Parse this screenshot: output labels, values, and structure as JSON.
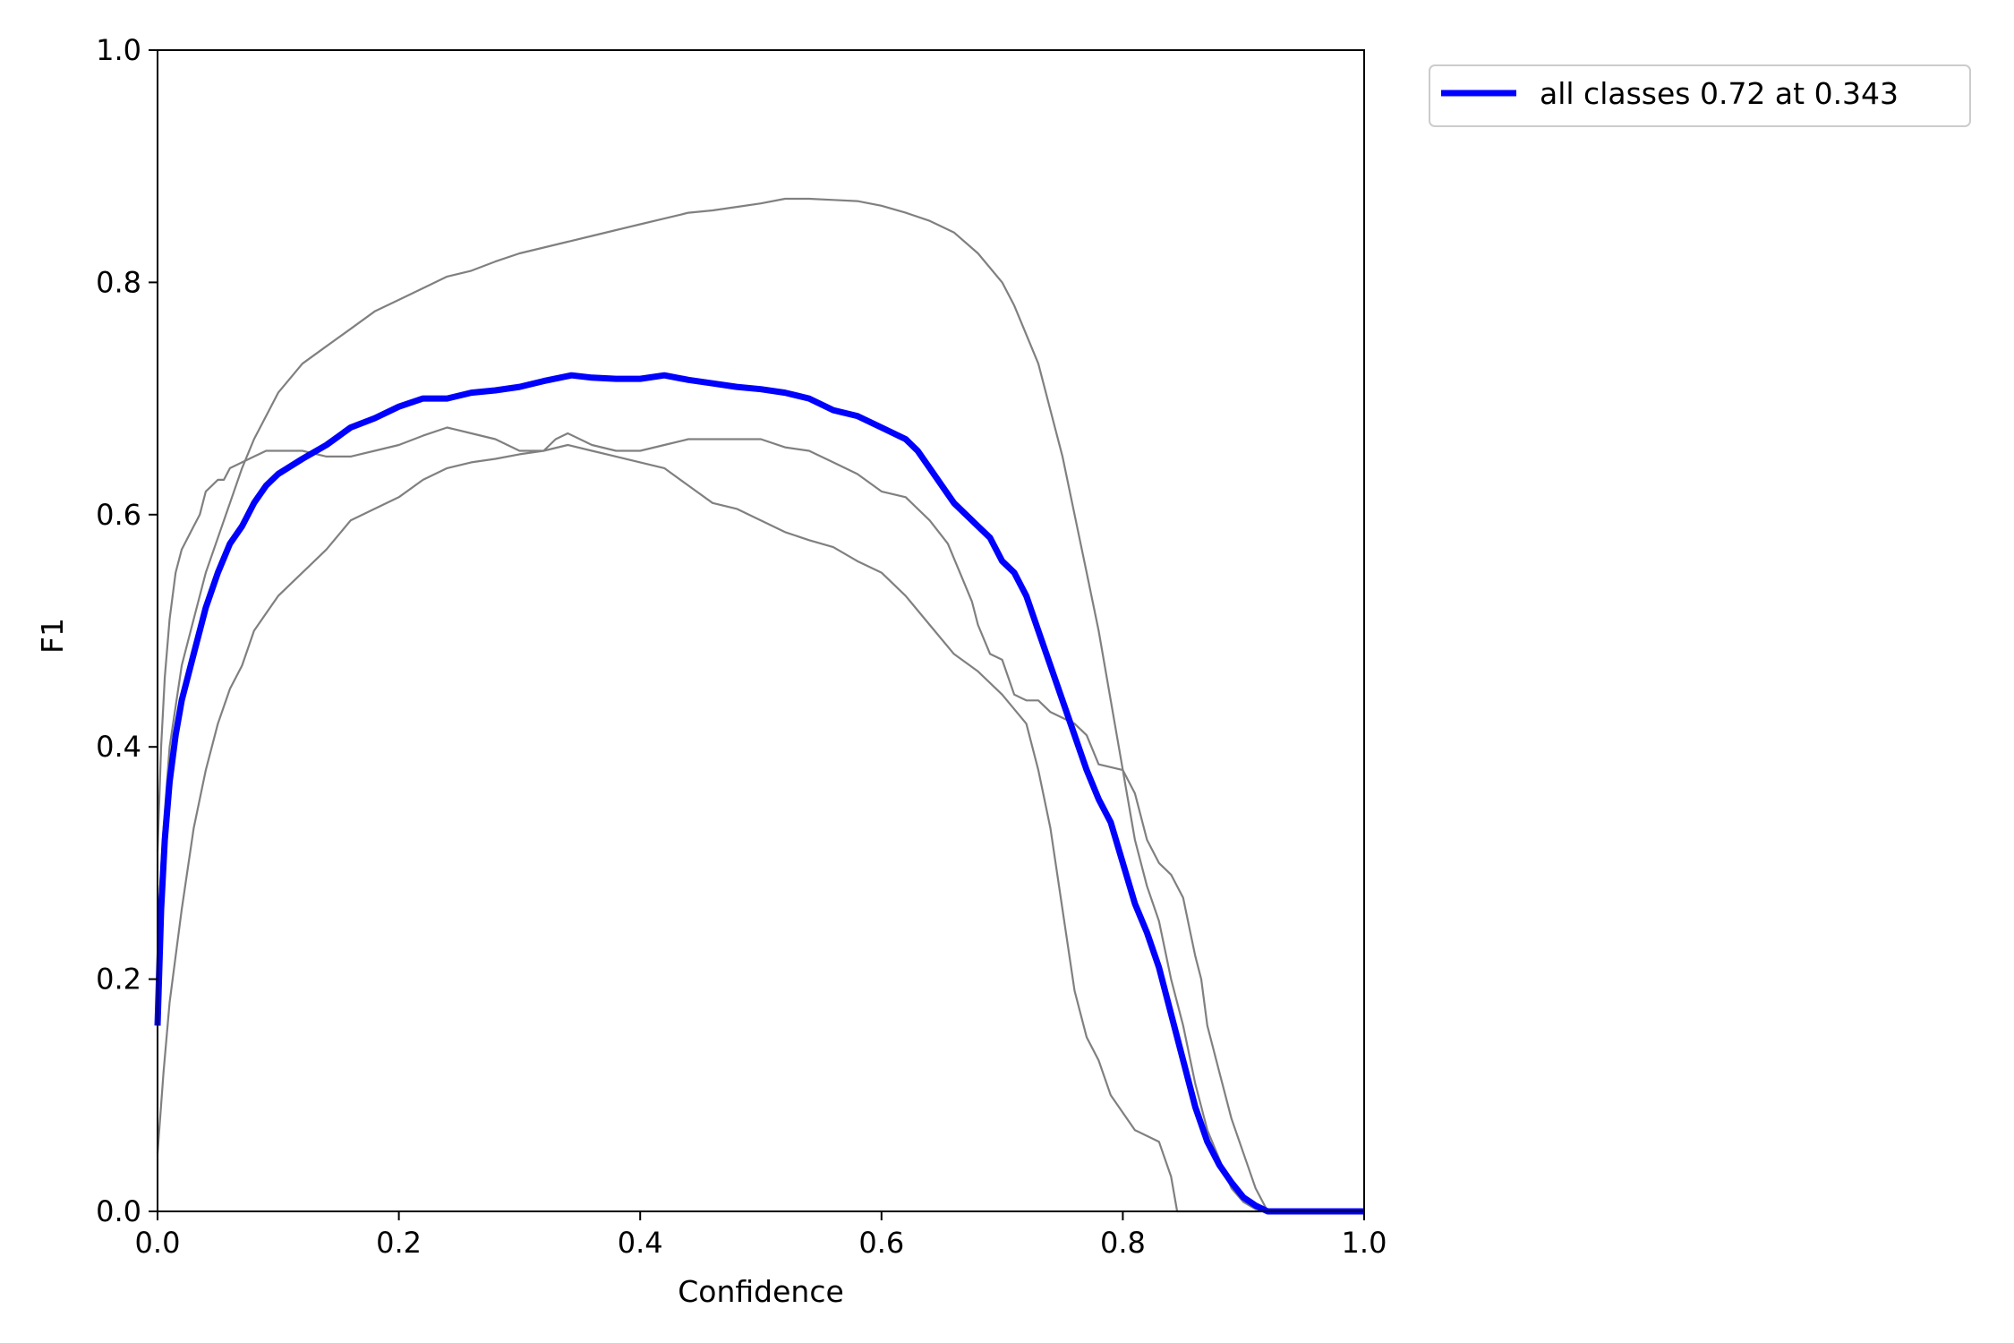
{
  "chart_data": {
    "type": "line",
    "title": "",
    "xlabel": "Confidence",
    "ylabel": "F1",
    "xlim": [
      0,
      1
    ],
    "ylim": [
      0,
      1
    ],
    "xticks": [
      "0.0",
      "0.2",
      "0.4",
      "0.6",
      "0.8",
      "1.0"
    ],
    "yticks": [
      "0.0",
      "0.2",
      "0.4",
      "0.6",
      "0.8",
      "1.0"
    ],
    "grid": false,
    "legend_position": "outside-top-right",
    "series": [
      {
        "name": "",
        "color": "#808080",
        "points": [
          [
            0.0,
            0.31
          ],
          [
            0.003,
            0.4
          ],
          [
            0.006,
            0.46
          ],
          [
            0.01,
            0.51
          ],
          [
            0.015,
            0.55
          ],
          [
            0.02,
            0.57
          ],
          [
            0.025,
            0.58
          ],
          [
            0.03,
            0.59
          ],
          [
            0.035,
            0.6
          ],
          [
            0.04,
            0.62
          ],
          [
            0.045,
            0.625
          ],
          [
            0.05,
            0.63
          ],
          [
            0.055,
            0.63
          ],
          [
            0.06,
            0.64
          ],
          [
            0.07,
            0.645
          ],
          [
            0.08,
            0.65
          ],
          [
            0.09,
            0.655
          ],
          [
            0.1,
            0.655
          ],
          [
            0.12,
            0.655
          ],
          [
            0.14,
            0.65
          ],
          [
            0.16,
            0.65
          ],
          [
            0.18,
            0.655
          ],
          [
            0.2,
            0.66
          ],
          [
            0.22,
            0.668
          ],
          [
            0.24,
            0.675
          ],
          [
            0.26,
            0.67
          ],
          [
            0.28,
            0.665
          ],
          [
            0.3,
            0.655
          ],
          [
            0.32,
            0.655
          ],
          [
            0.33,
            0.665
          ],
          [
            0.34,
            0.67
          ],
          [
            0.36,
            0.66
          ],
          [
            0.38,
            0.655
          ],
          [
            0.4,
            0.655
          ],
          [
            0.42,
            0.66
          ],
          [
            0.44,
            0.665
          ],
          [
            0.46,
            0.665
          ],
          [
            0.48,
            0.665
          ],
          [
            0.5,
            0.665
          ],
          [
            0.52,
            0.658
          ],
          [
            0.54,
            0.655
          ],
          [
            0.56,
            0.645
          ],
          [
            0.58,
            0.635
          ],
          [
            0.6,
            0.62
          ],
          [
            0.62,
            0.615
          ],
          [
            0.64,
            0.595
          ],
          [
            0.655,
            0.575
          ],
          [
            0.665,
            0.55
          ],
          [
            0.675,
            0.525
          ],
          [
            0.68,
            0.505
          ],
          [
            0.69,
            0.48
          ],
          [
            0.7,
            0.475
          ],
          [
            0.71,
            0.445
          ],
          [
            0.72,
            0.44
          ],
          [
            0.73,
            0.44
          ],
          [
            0.74,
            0.43
          ],
          [
            0.75,
            0.425
          ],
          [
            0.76,
            0.42
          ],
          [
            0.77,
            0.41
          ],
          [
            0.78,
            0.385
          ],
          [
            0.8,
            0.38
          ],
          [
            0.81,
            0.36
          ],
          [
            0.82,
            0.32
          ],
          [
            0.83,
            0.3
          ],
          [
            0.84,
            0.29
          ],
          [
            0.85,
            0.27
          ],
          [
            0.855,
            0.245
          ],
          [
            0.86,
            0.22
          ],
          [
            0.865,
            0.2
          ],
          [
            0.87,
            0.16
          ],
          [
            0.88,
            0.12
          ],
          [
            0.89,
            0.08
          ],
          [
            0.9,
            0.05
          ],
          [
            0.91,
            0.02
          ],
          [
            0.92,
            0.0
          ],
          [
            1.0,
            0.0
          ]
        ]
      },
      {
        "name": "",
        "color": "#808080",
        "points": [
          [
            0.0,
            0.05
          ],
          [
            0.005,
            0.12
          ],
          [
            0.01,
            0.18
          ],
          [
            0.02,
            0.26
          ],
          [
            0.03,
            0.33
          ],
          [
            0.04,
            0.38
          ],
          [
            0.05,
            0.42
          ],
          [
            0.06,
            0.45
          ],
          [
            0.07,
            0.47
          ],
          [
            0.08,
            0.5
          ],
          [
            0.09,
            0.515
          ],
          [
            0.1,
            0.53
          ],
          [
            0.12,
            0.55
          ],
          [
            0.14,
            0.57
          ],
          [
            0.16,
            0.595
          ],
          [
            0.18,
            0.605
          ],
          [
            0.2,
            0.615
          ],
          [
            0.22,
            0.63
          ],
          [
            0.24,
            0.64
          ],
          [
            0.26,
            0.645
          ],
          [
            0.28,
            0.648
          ],
          [
            0.3,
            0.652
          ],
          [
            0.32,
            0.655
          ],
          [
            0.34,
            0.66
          ],
          [
            0.36,
            0.655
          ],
          [
            0.38,
            0.65
          ],
          [
            0.4,
            0.645
          ],
          [
            0.42,
            0.64
          ],
          [
            0.44,
            0.625
          ],
          [
            0.46,
            0.61
          ],
          [
            0.48,
            0.605
          ],
          [
            0.5,
            0.595
          ],
          [
            0.52,
            0.585
          ],
          [
            0.54,
            0.578
          ],
          [
            0.56,
            0.572
          ],
          [
            0.58,
            0.56
          ],
          [
            0.6,
            0.55
          ],
          [
            0.62,
            0.53
          ],
          [
            0.64,
            0.505
          ],
          [
            0.66,
            0.48
          ],
          [
            0.68,
            0.465
          ],
          [
            0.7,
            0.445
          ],
          [
            0.72,
            0.42
          ],
          [
            0.73,
            0.38
          ],
          [
            0.74,
            0.33
          ],
          [
            0.75,
            0.26
          ],
          [
            0.76,
            0.19
          ],
          [
            0.77,
            0.15
          ],
          [
            0.78,
            0.13
          ],
          [
            0.79,
            0.1
          ],
          [
            0.8,
            0.085
          ],
          [
            0.81,
            0.07
          ],
          [
            0.82,
            0.065
          ],
          [
            0.83,
            0.06
          ],
          [
            0.84,
            0.03
          ],
          [
            0.845,
            0.0
          ],
          [
            1.0,
            0.0
          ]
        ]
      },
      {
        "name": "",
        "color": "#808080",
        "points": [
          [
            0.0,
            0.24
          ],
          [
            0.005,
            0.33
          ],
          [
            0.01,
            0.4
          ],
          [
            0.02,
            0.47
          ],
          [
            0.03,
            0.51
          ],
          [
            0.04,
            0.55
          ],
          [
            0.05,
            0.58
          ],
          [
            0.06,
            0.61
          ],
          [
            0.07,
            0.64
          ],
          [
            0.08,
            0.665
          ],
          [
            0.09,
            0.685
          ],
          [
            0.1,
            0.705
          ],
          [
            0.12,
            0.73
          ],
          [
            0.14,
            0.745
          ],
          [
            0.16,
            0.76
          ],
          [
            0.18,
            0.775
          ],
          [
            0.2,
            0.785
          ],
          [
            0.22,
            0.795
          ],
          [
            0.24,
            0.805
          ],
          [
            0.26,
            0.81
          ],
          [
            0.28,
            0.818
          ],
          [
            0.3,
            0.825
          ],
          [
            0.32,
            0.83
          ],
          [
            0.34,
            0.835
          ],
          [
            0.36,
            0.84
          ],
          [
            0.38,
            0.845
          ],
          [
            0.4,
            0.85
          ],
          [
            0.42,
            0.855
          ],
          [
            0.44,
            0.86
          ],
          [
            0.46,
            0.862
          ],
          [
            0.48,
            0.865
          ],
          [
            0.5,
            0.868
          ],
          [
            0.52,
            0.872
          ],
          [
            0.54,
            0.872
          ],
          [
            0.56,
            0.871
          ],
          [
            0.58,
            0.87
          ],
          [
            0.6,
            0.866
          ],
          [
            0.62,
            0.86
          ],
          [
            0.64,
            0.853
          ],
          [
            0.66,
            0.843
          ],
          [
            0.68,
            0.825
          ],
          [
            0.7,
            0.8
          ],
          [
            0.71,
            0.78
          ],
          [
            0.72,
            0.755
          ],
          [
            0.73,
            0.73
          ],
          [
            0.74,
            0.69
          ],
          [
            0.75,
            0.65
          ],
          [
            0.76,
            0.6
          ],
          [
            0.77,
            0.55
          ],
          [
            0.78,
            0.5
          ],
          [
            0.79,
            0.44
          ],
          [
            0.8,
            0.38
          ],
          [
            0.81,
            0.32
          ],
          [
            0.82,
            0.28
          ],
          [
            0.83,
            0.25
          ],
          [
            0.84,
            0.2
          ],
          [
            0.85,
            0.16
          ],
          [
            0.86,
            0.11
          ],
          [
            0.87,
            0.07
          ],
          [
            0.88,
            0.045
          ],
          [
            0.89,
            0.02
          ],
          [
            0.9,
            0.008
          ],
          [
            0.91,
            0.002
          ],
          [
            0.92,
            0.0
          ],
          [
            1.0,
            0.0
          ]
        ]
      },
      {
        "name": "all classes 0.72 at 0.343",
        "color": "#0000ff",
        "points": [
          [
            0.0,
            0.16
          ],
          [
            0.003,
            0.26
          ],
          [
            0.006,
            0.32
          ],
          [
            0.01,
            0.37
          ],
          [
            0.015,
            0.41
          ],
          [
            0.02,
            0.44
          ],
          [
            0.03,
            0.48
          ],
          [
            0.04,
            0.52
          ],
          [
            0.05,
            0.55
          ],
          [
            0.06,
            0.575
          ],
          [
            0.07,
            0.59
          ],
          [
            0.08,
            0.61
          ],
          [
            0.09,
            0.625
          ],
          [
            0.1,
            0.635
          ],
          [
            0.12,
            0.648
          ],
          [
            0.14,
            0.66
          ],
          [
            0.16,
            0.675
          ],
          [
            0.18,
            0.683
          ],
          [
            0.2,
            0.693
          ],
          [
            0.22,
            0.7
          ],
          [
            0.24,
            0.7
          ],
          [
            0.26,
            0.705
          ],
          [
            0.28,
            0.707
          ],
          [
            0.3,
            0.71
          ],
          [
            0.32,
            0.715
          ],
          [
            0.343,
            0.72
          ],
          [
            0.36,
            0.718
          ],
          [
            0.38,
            0.717
          ],
          [
            0.4,
            0.717
          ],
          [
            0.42,
            0.72
          ],
          [
            0.44,
            0.716
          ],
          [
            0.46,
            0.713
          ],
          [
            0.48,
            0.71
          ],
          [
            0.5,
            0.708
          ],
          [
            0.52,
            0.705
          ],
          [
            0.54,
            0.7
          ],
          [
            0.56,
            0.69
          ],
          [
            0.58,
            0.685
          ],
          [
            0.6,
            0.675
          ],
          [
            0.62,
            0.665
          ],
          [
            0.63,
            0.655
          ],
          [
            0.64,
            0.64
          ],
          [
            0.65,
            0.625
          ],
          [
            0.66,
            0.61
          ],
          [
            0.67,
            0.6
          ],
          [
            0.68,
            0.59
          ],
          [
            0.69,
            0.58
          ],
          [
            0.7,
            0.56
          ],
          [
            0.71,
            0.55
          ],
          [
            0.72,
            0.53
          ],
          [
            0.73,
            0.5
          ],
          [
            0.74,
            0.47
          ],
          [
            0.75,
            0.44
          ],
          [
            0.76,
            0.41
          ],
          [
            0.77,
            0.38
          ],
          [
            0.78,
            0.355
          ],
          [
            0.79,
            0.335
          ],
          [
            0.8,
            0.3
          ],
          [
            0.81,
            0.265
          ],
          [
            0.82,
            0.24
          ],
          [
            0.83,
            0.21
          ],
          [
            0.84,
            0.17
          ],
          [
            0.85,
            0.13
          ],
          [
            0.86,
            0.09
          ],
          [
            0.87,
            0.06
          ],
          [
            0.88,
            0.04
          ],
          [
            0.89,
            0.025
          ],
          [
            0.9,
            0.012
          ],
          [
            0.91,
            0.005
          ],
          [
            0.92,
            0.0
          ],
          [
            1.0,
            0.0
          ]
        ]
      }
    ]
  }
}
